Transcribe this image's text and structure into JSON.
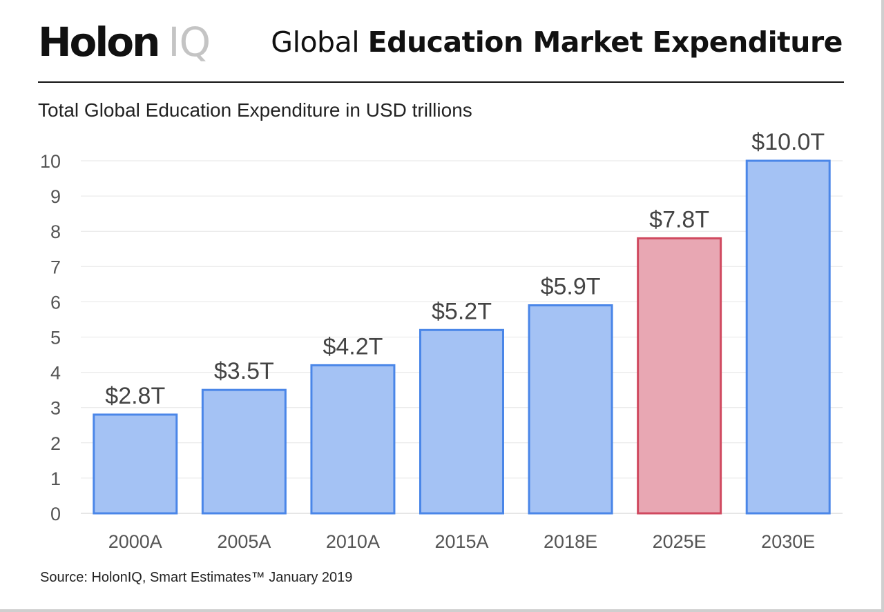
{
  "header": {
    "brand_main": "Holon",
    "brand_suffix": "IQ",
    "title_light": "Global",
    "title_bold": "Education Market Expenditure"
  },
  "subtitle": "Total Global Education Expenditure in USD trillions",
  "source": "Source: HolonIQ, Smart Estimates™ January 2019",
  "colors": {
    "bar_fill": "#a4c2f4",
    "bar_stroke": "#4a86e8",
    "highlight_fill": "#e8a7b3",
    "highlight_stroke": "#d0495f",
    "grid": "#e6e6e6"
  },
  "chart_data": {
    "type": "bar",
    "title": "",
    "xlabel": "",
    "ylabel": "",
    "categories": [
      "2000A",
      "2005A",
      "2010A",
      "2015A",
      "2018E",
      "2025E",
      "2030E"
    ],
    "values": [
      2.8,
      3.5,
      4.2,
      5.2,
      5.9,
      7.8,
      10.0
    ],
    "data_labels": [
      "$2.8T",
      "$3.5T",
      "$4.2T",
      "$5.2T",
      "$5.9T",
      "$7.8T",
      "$10.0T"
    ],
    "highlighted": [
      "2025E"
    ],
    "ylim": [
      0,
      10
    ],
    "yticks": [
      0,
      1,
      2,
      3,
      4,
      5,
      6,
      7,
      8,
      9,
      10
    ],
    "grid": true,
    "legend": "none"
  }
}
